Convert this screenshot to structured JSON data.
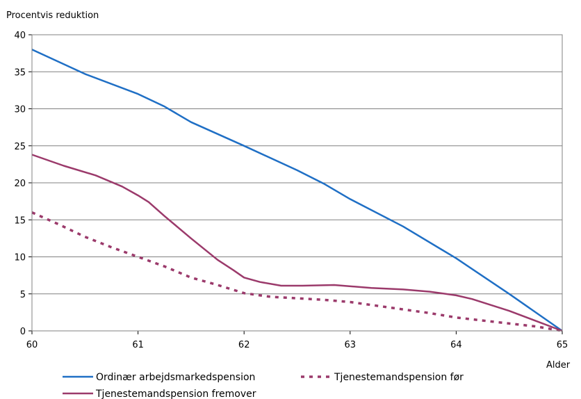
{
  "chart_data": {
    "type": "line",
    "title": "",
    "ylabel": "Procentvis reduktion",
    "xlabel": "Alder",
    "xlim": [
      60,
      65
    ],
    "ylim": [
      0,
      40
    ],
    "x_ticks": [
      60,
      61,
      62,
      63,
      64,
      65
    ],
    "y_ticks": [
      0,
      5,
      10,
      15,
      20,
      25,
      30,
      35,
      40
    ],
    "grid": "horizontal",
    "legend_position": "bottom",
    "series": [
      {
        "name": "Ordinær arbejdsmarkedspension",
        "color": "#1f6fc5",
        "style": "solid",
        "x": [
          60,
          60.5,
          61,
          61.25,
          61.5,
          62,
          62.5,
          62.75,
          63,
          63.5,
          64,
          64.5,
          65
        ],
        "y": [
          38,
          34.7,
          32,
          30.3,
          28.2,
          25,
          21.7,
          19.9,
          17.8,
          14.1,
          9.8,
          5,
          0
        ]
      },
      {
        "name": "Tjenestemandspension før",
        "color": "#9b3a6b",
        "style": "dotted",
        "x": [
          60,
          60.25,
          60.5,
          60.75,
          61,
          61.25,
          61.5,
          61.75,
          62,
          62.25,
          62.5,
          62.75,
          63,
          63.25,
          63.5,
          63.75,
          64,
          64.25,
          64.5,
          64.75,
          65
        ],
        "y": [
          16,
          14.4,
          12.7,
          11.3,
          10,
          8.7,
          7.2,
          6.2,
          5.1,
          4.6,
          4.4,
          4.2,
          3.9,
          3.4,
          2.9,
          2.4,
          1.8,
          1.4,
          1,
          0.6,
          0
        ]
      },
      {
        "name": "Tjenestemandspension fremover",
        "color": "#9b3a6b",
        "style": "solid",
        "x": [
          60,
          60.3,
          60.6,
          60.85,
          61,
          61.1,
          61.25,
          61.5,
          61.75,
          61.9,
          62,
          62.15,
          62.35,
          62.55,
          62.85,
          63.2,
          63.5,
          63.75,
          64,
          64.15,
          64.5,
          65
        ],
        "y": [
          23.8,
          22.3,
          21,
          19.5,
          18.3,
          17.4,
          15.5,
          12.5,
          9.6,
          8.2,
          7.2,
          6.6,
          6.1,
          6.1,
          6.2,
          5.8,
          5.6,
          5.3,
          4.8,
          4.3,
          2.7,
          0
        ]
      }
    ]
  }
}
